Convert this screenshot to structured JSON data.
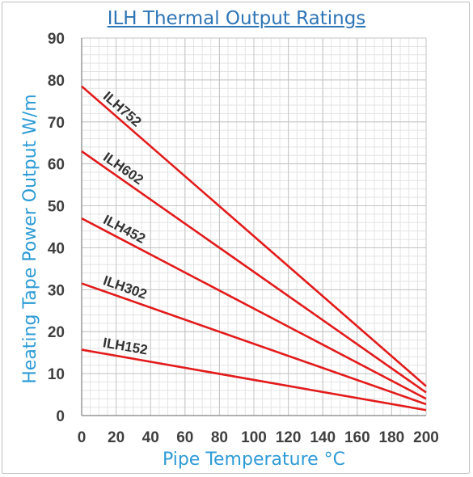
{
  "chart_data": {
    "type": "line",
    "title": "ILH Thermal Output Ratings",
    "xlabel": "Pipe Temperature °C",
    "ylabel": "Heating Tape Power Output W/m",
    "xlim": [
      0,
      200
    ],
    "ylim": [
      0,
      90
    ],
    "x_ticks": [
      0,
      20,
      40,
      60,
      80,
      100,
      120,
      140,
      160,
      180,
      200
    ],
    "y_ticks": [
      0,
      10,
      20,
      30,
      40,
      50,
      60,
      70,
      80,
      90
    ],
    "grid": true,
    "line_color": "#e31b1b",
    "series": [
      {
        "name": "ILH752",
        "x": [
          0,
          200
        ],
        "values": [
          78.5,
          7
        ]
      },
      {
        "name": "ILH602",
        "x": [
          0,
          200
        ],
        "values": [
          63,
          5.5
        ]
      },
      {
        "name": "ILH452",
        "x": [
          0,
          200
        ],
        "values": [
          47,
          4
        ]
      },
      {
        "name": "ILH302",
        "x": [
          0,
          200
        ],
        "values": [
          31.5,
          2.7
        ]
      },
      {
        "name": "ILH152",
        "x": [
          0,
          200
        ],
        "values": [
          15.7,
          1.3
        ]
      }
    ]
  }
}
